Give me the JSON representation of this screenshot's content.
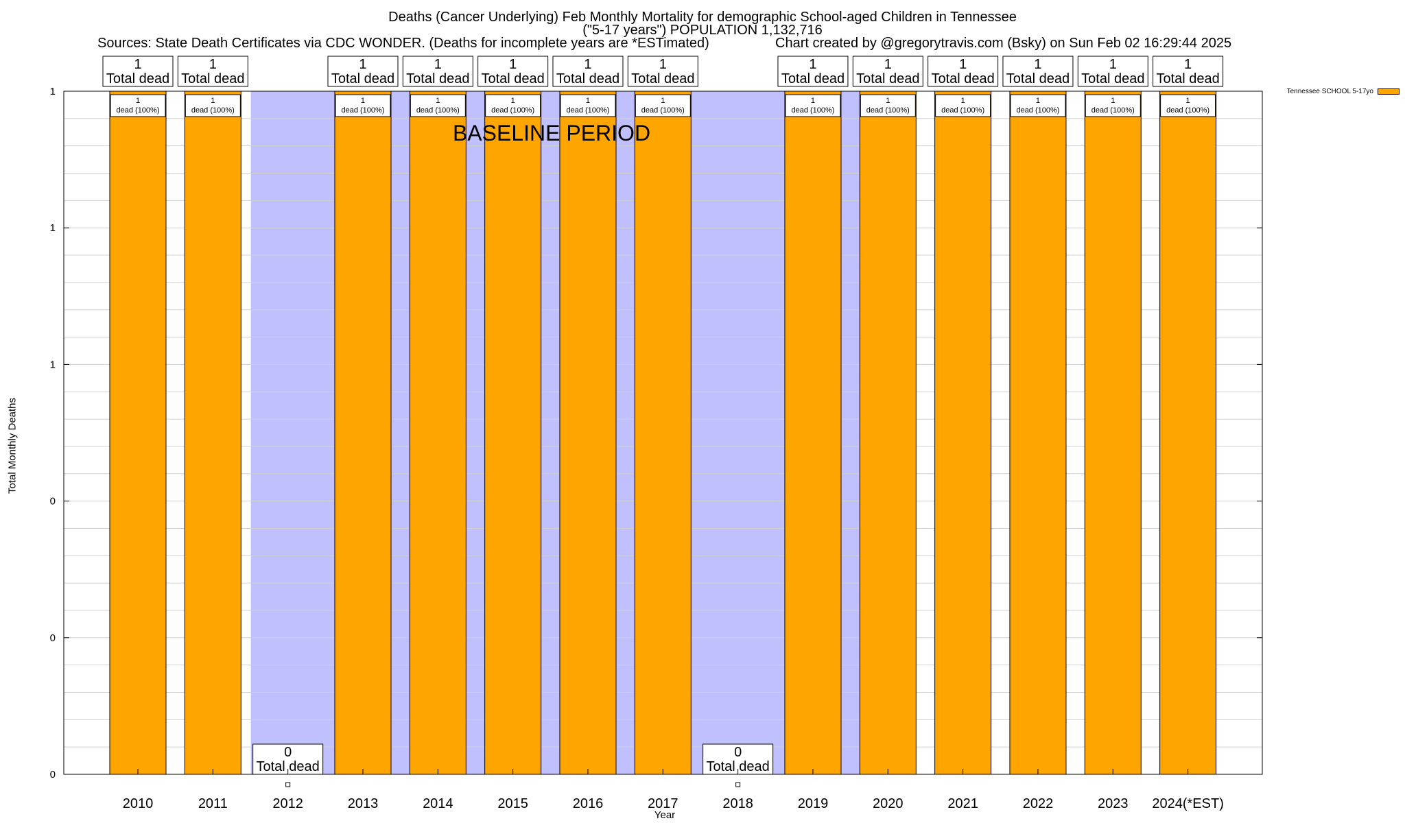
{
  "title_line1": "Deaths (Cancer Underlying) Feb Monthly Mortality for demographic School-aged Children in Tennessee",
  "title_line2": "(\"5-17 years\") POPULATION 1,132,716",
  "sources": "Sources: State Death Certificates via CDC WONDER. (Deaths for incomplete years are *ESTimated)",
  "credit": "Chart created by @gregorytravis.com (Bsky) on Sun Feb 02 16:29:44 2025",
  "baseline_label": "BASELINE PERIOD",
  "colors": {
    "bar": "#ffa500",
    "baseline": "#c0c0ff",
    "grid": "#d0d0d0"
  },
  "chart_data": {
    "type": "bar",
    "title": "Deaths (Cancer Underlying) Feb Monthly Mortality for demographic School-aged Children in Tennessee",
    "xlabel": "Year",
    "ylabel": "Total Monthly Deaths",
    "categories": [
      "2010",
      "2011",
      "2012",
      "2013",
      "2014",
      "2015",
      "2016",
      "2017",
      "2018",
      "2019",
      "2020",
      "2021",
      "2022",
      "2023",
      "2024(*EST)"
    ],
    "series": [
      {
        "name": "Tennessee SCHOOL 5-17yo",
        "values": [
          1,
          1,
          0,
          1,
          1,
          1,
          1,
          1,
          0,
          1,
          1,
          1,
          1,
          1,
          1
        ]
      }
    ],
    "total_labels": [
      "1\nTotal dead",
      "1\nTotal dead",
      "0\nTotal dead",
      "1\nTotal dead",
      "1\nTotal dead",
      "1\nTotal dead",
      "1\nTotal dead",
      "1\nTotal dead",
      "0\nTotal dead",
      "1\nTotal dead",
      "1\nTotal dead",
      "1\nTotal dead",
      "1\nTotal dead",
      "1\nTotal dead",
      "1\nTotal dead"
    ],
    "bar_labels": [
      "1\ndead (100%)",
      "1\ndead (100%)",
      "",
      "1\ndead (100%)",
      "1\ndead (100%)",
      "1\ndead (100%)",
      "1\ndead (100%)",
      "1\ndead (100%)",
      "",
      "1\ndead (100%)",
      "1\ndead (100%)",
      "1\ndead (100%)",
      "1\ndead (100%)",
      "1\ndead (100%)",
      "1\ndead (100%)"
    ],
    "y_tick_labels": [
      "0",
      "0",
      "0",
      "1",
      "1",
      "1"
    ],
    "ylim": [
      0,
      1
    ],
    "baseline_period": [
      "2012",
      "2019"
    ],
    "grid": true,
    "legend_position": "top-right"
  }
}
